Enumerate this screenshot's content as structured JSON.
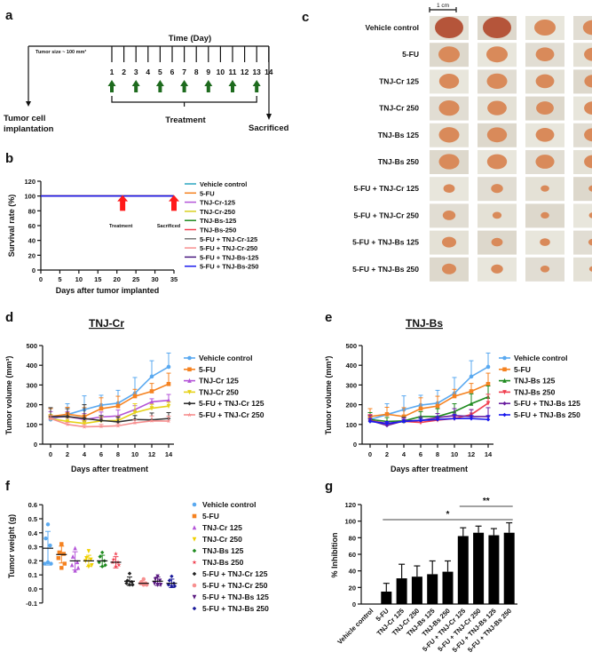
{
  "panel_labels": {
    "a": "a",
    "b": "b",
    "c": "c",
    "d": "d",
    "e": "e",
    "f": "f",
    "g": "g"
  },
  "panel_a": {
    "title": "Time (Day)",
    "tumor_size": "Tumor size ~ 100 mm³",
    "days": [
      "1",
      "2",
      "3",
      "4",
      "5",
      "6",
      "7",
      "8",
      "9",
      "10",
      "11",
      "12",
      "13",
      "14"
    ],
    "treatment_days": [
      1,
      3,
      5,
      7,
      9,
      11,
      13
    ],
    "treatment_label": "Treatment",
    "implant_label_1": "Tumor cell",
    "implant_label_2": "implantation",
    "sacrificed_label": "Sacrificed",
    "arrow_color": "#1e6b1e"
  },
  "panel_c": {
    "scale_label": "1 cm",
    "rows": [
      "Vehicle control",
      "5-FU",
      "TNJ-Cr 125",
      "TNJ-Cr 250",
      "TNJ-Bs 125",
      "TNJ-Bs 250",
      "5-FU + TNJ-Cr 125",
      "5-FU + TNJ-Cr 250",
      "5-FU + TNJ-Bs 125",
      "5-FU + TNJ-Bs 250"
    ]
  },
  "chart_data": [
    {
      "id": "b",
      "type": "line",
      "xlabel": "Days after tumor implanted",
      "ylabel": "Survival rate (%)",
      "xlim": [
        0,
        35
      ],
      "ylim": [
        0,
        120
      ],
      "xticks": [
        "0",
        "5",
        "10",
        "15",
        "20",
        "25",
        "30",
        "35"
      ],
      "yticks": [
        "0",
        "20",
        "40",
        "60",
        "80",
        "100",
        "120"
      ],
      "annotations": [
        {
          "text": "Treatment",
          "x": 21.5
        },
        {
          "text": "Sacrificed",
          "x": 35
        }
      ],
      "arrow_color": "#ff1a1a",
      "legend": "right",
      "series": [
        {
          "name": "Vehicle control",
          "color": "#2aa6c0",
          "x": [
            0,
            35
          ],
          "y": [
            100,
            100
          ]
        },
        {
          "name": "5-FU",
          "color": "#f58220",
          "x": [
            0,
            35
          ],
          "y": [
            100,
            100
          ]
        },
        {
          "name": "TNJ-Cr-125",
          "color": "#b455d8",
          "x": [
            0,
            35
          ],
          "y": [
            100,
            100
          ]
        },
        {
          "name": "TNJ-Cr-250",
          "color": "#d8d020",
          "x": [
            0,
            35
          ],
          "y": [
            100,
            100
          ]
        },
        {
          "name": "TNJ-Bs-125",
          "color": "#1f8a1f",
          "x": [
            0,
            35
          ],
          "y": [
            100,
            100
          ]
        },
        {
          "name": "TNJ-Bs-250",
          "color": "#f04050",
          "x": [
            0,
            35
          ],
          "y": [
            100,
            100
          ]
        },
        {
          "name": "5-FU + TNJ-Cr-125",
          "color": "#777777",
          "x": [
            0,
            35
          ],
          "y": [
            100,
            100
          ]
        },
        {
          "name": "5-FU + TNJ-Cr-250",
          "color": "#f79090",
          "x": [
            0,
            35
          ],
          "y": [
            100,
            100
          ]
        },
        {
          "name": "5-FU + TNJ-Bs-125",
          "color": "#4a1a80",
          "x": [
            0,
            35
          ],
          "y": [
            100,
            100
          ]
        },
        {
          "name": "5-FU + TNJ-Bs-250",
          "color": "#1a1aee",
          "x": [
            0,
            35
          ],
          "y": [
            100,
            100
          ]
        }
      ]
    },
    {
      "id": "d",
      "type": "line",
      "title": "TNJ-Cr",
      "xlabel": "Days after treatment",
      "ylabel": "Tumor volume (mm³)",
      "xlim": [
        0,
        14
      ],
      "ylim": [
        0,
        500
      ],
      "x": [
        0,
        2,
        4,
        6,
        8,
        10,
        12,
        14
      ],
      "xticks": [
        "0",
        "2",
        "4",
        "6",
        "8",
        "10",
        "12",
        "14"
      ],
      "yticks": [
        "0",
        "100",
        "200",
        "300",
        "400",
        "500"
      ],
      "legend": "right",
      "series": [
        {
          "name": "Vehicle control",
          "color": "#5aa9f0",
          "marker": "circle",
          "values": [
            125,
            150,
            175,
            198,
            208,
            258,
            343,
            392
          ],
          "sd": [
            20,
            55,
            70,
            50,
            65,
            80,
            80,
            70
          ]
        },
        {
          "name": "5-FU",
          "color": "#f58220",
          "marker": "square",
          "values": [
            140,
            152,
            140,
            180,
            193,
            243,
            268,
            305
          ],
          "sd": [
            40,
            35,
            45,
            55,
            50,
            35,
            40,
            55
          ]
        },
        {
          "name": "TNJ-Cr 125",
          "color": "#b455d8",
          "marker": "triangle",
          "values": [
            135,
            140,
            125,
            138,
            143,
            175,
            215,
            222
          ],
          "sd": [
            30,
            25,
            30,
            25,
            30,
            20,
            15,
            30
          ]
        },
        {
          "name": "TNJ-Cr 250",
          "color": "#e6d21a",
          "marker": "tri-down",
          "values": [
            130,
            115,
            105,
            118,
            120,
            160,
            182,
            193
          ],
          "sd": [
            20,
            20,
            15,
            20,
            20,
            45,
            20,
            20
          ]
        },
        {
          "name": "5-FU + TNJ-Cr 125",
          "color": "#333333",
          "marker": "diamond",
          "values": [
            140,
            140,
            130,
            120,
            113,
            125,
            123,
            130
          ],
          "sd": [
            45,
            40,
            70,
            25,
            25,
            20,
            35,
            30
          ]
        },
        {
          "name": "5-FU + TNJ-Cr 250",
          "color": "#f79090",
          "marker": "star",
          "values": [
            130,
            100,
            88,
            90,
            93,
            108,
            118,
            117
          ],
          "sd": [
            15,
            10,
            10,
            10,
            10,
            15,
            25,
            25
          ]
        }
      ]
    },
    {
      "id": "e",
      "type": "line",
      "title": "TNJ-Bs",
      "xlabel": "Days after treatment",
      "ylabel": "Tumor volume (mm³)",
      "xlim": [
        0,
        14
      ],
      "ylim": [
        0,
        500
      ],
      "x": [
        0,
        2,
        4,
        6,
        8,
        10,
        12,
        14
      ],
      "xticks": [
        "0",
        "2",
        "4",
        "6",
        "8",
        "10",
        "12",
        "14"
      ],
      "yticks": [
        "0",
        "100",
        "200",
        "300",
        "400",
        "500"
      ],
      "legend": "right",
      "series": [
        {
          "name": "Vehicle control",
          "color": "#5aa9f0",
          "marker": "circle",
          "values": [
            125,
            150,
            175,
            198,
            208,
            258,
            343,
            392
          ],
          "sd": [
            20,
            55,
            70,
            50,
            65,
            80,
            80,
            70
          ]
        },
        {
          "name": "5-FU",
          "color": "#f58220",
          "marker": "square",
          "values": [
            140,
            152,
            140,
            180,
            193,
            243,
            268,
            305
          ],
          "sd": [
            40,
            35,
            45,
            55,
            50,
            35,
            40,
            55
          ]
        },
        {
          "name": "TNJ-Bs 125",
          "color": "#1f8a1f",
          "marker": "triangle",
          "values": [
            125,
            115,
            118,
            140,
            140,
            165,
            205,
            240
          ],
          "sd": [
            35,
            20,
            20,
            25,
            40,
            40,
            50,
            55
          ]
        },
        {
          "name": "TNJ-Bs 250",
          "color": "#f04050",
          "marker": "tri-down",
          "values": [
            120,
            105,
            115,
            110,
            122,
            130,
            150,
            208
          ],
          "sd": [
            30,
            10,
            20,
            10,
            15,
            20,
            25,
            45
          ]
        },
        {
          "name": "5-FU + TNJ-Bs 125",
          "color": "#6a1ea0",
          "marker": "diamond",
          "values": [
            120,
            95,
            118,
            120,
            135,
            145,
            140,
            140
          ],
          "sd": [
            25,
            15,
            15,
            20,
            20,
            35,
            35,
            45
          ]
        },
        {
          "name": "5-FU + TNJ-Bs 250",
          "color": "#1a1aee",
          "marker": "diamond",
          "values": [
            115,
            105,
            115,
            120,
            125,
            130,
            130,
            125
          ],
          "sd": [
            15,
            10,
            10,
            10,
            15,
            20,
            15,
            20
          ]
        }
      ]
    },
    {
      "id": "f",
      "type": "scatter",
      "ylabel": "Tumor weight (g)",
      "ylim": [
        -0.1,
        0.6
      ],
      "yticks": [
        "-0.1",
        "0.0",
        "0.1",
        "0.2",
        "0.3",
        "0.4",
        "0.5",
        "0.6"
      ],
      "legend": "right",
      "groups": [
        {
          "name": "Vehicle control",
          "color": "#5aa9f0",
          "marker": "circle",
          "mean": 0.29,
          "sd": 0.12,
          "points": [
            0.46,
            0.36,
            0.31,
            0.18,
            0.18,
            0.19
          ]
        },
        {
          "name": "5-FU",
          "color": "#f58220",
          "marker": "square",
          "mean": 0.245,
          "sd": 0.06,
          "points": [
            0.32,
            0.26,
            0.25,
            0.22,
            0.18,
            0.15
          ]
        },
        {
          "name": "TNJ-Cr 125",
          "color": "#b455d8",
          "marker": "triangle",
          "mean": 0.2,
          "sd": 0.065,
          "points": [
            0.29,
            0.23,
            0.19,
            0.17,
            0.15,
            0.13
          ]
        },
        {
          "name": "TNJ-Cr 250",
          "color": "#f0d000",
          "marker": "tri-down",
          "mean": 0.2,
          "sd": 0.04,
          "points": [
            0.27,
            0.22,
            0.21,
            0.2,
            0.17,
            0.16
          ]
        },
        {
          "name": "TNJ-Bs 125",
          "color": "#1f8a1f",
          "marker": "diamond",
          "mean": 0.2,
          "sd": 0.04,
          "points": [
            0.26,
            0.23,
            0.2,
            0.19,
            0.17,
            0.16
          ]
        },
        {
          "name": "TNJ-Bs 250",
          "color": "#f04050",
          "marker": "star",
          "mean": 0.19,
          "sd": 0.04,
          "points": [
            0.25,
            0.21,
            0.19,
            0.19,
            0.17,
            0.16
          ]
        },
        {
          "name": "5-FU + TNJ-Cr 125",
          "color": "#222222",
          "marker": "diamond",
          "mean": 0.055,
          "sd": 0.03,
          "points": [
            0.11,
            0.06,
            0.05,
            0.04,
            0.03,
            0.03
          ]
        },
        {
          "name": "5-FU + TNJ-Cr 250",
          "color": "#f79090",
          "marker": "circle",
          "mean": 0.04,
          "sd": 0.01,
          "points": [
            0.07,
            0.05,
            0.04,
            0.04,
            0.03,
            0.03
          ]
        },
        {
          "name": "5-FU + TNJ-Bs 125",
          "color": "#5a1a80",
          "marker": "tri-down",
          "mean": 0.055,
          "sd": 0.03,
          "points": [
            0.09,
            0.07,
            0.06,
            0.04,
            0.03,
            0.03
          ]
        },
        {
          "name": "5-FU + TNJ-Bs 250",
          "color": "#1a1a9a",
          "marker": "diamond",
          "mean": 0.04,
          "sd": 0.03,
          "points": [
            0.09,
            0.06,
            0.04,
            0.03,
            0.02,
            0.02
          ]
        }
      ]
    },
    {
      "id": "g",
      "type": "bar",
      "ylabel": "% Inhibition",
      "ylim": [
        0,
        120
      ],
      "yticks": [
        "0",
        "20",
        "40",
        "60",
        "80",
        "100",
        "120"
      ],
      "categories": [
        "Vehicle control",
        "5-FU",
        "TNJ-Cr 125",
        "TNJ-Cr 250",
        "TNJ-Bs 125",
        "TNJ-Bs 250",
        "5-FU + TNJ-Cr 125",
        "5-FU + TNJ-Cr 250",
        "5-FU + TNJ-Bs 125",
        "5-FU + TNJ-Bs 250"
      ],
      "values": [
        0,
        15,
        31,
        33,
        36,
        39,
        82,
        86,
        83,
        86
      ],
      "sd": [
        0,
        10,
        17,
        13,
        16,
        13,
        10,
        8,
        8,
        12
      ],
      "significance": [
        {
          "label": "*",
          "from": 1,
          "to": 9
        },
        {
          "label": "**",
          "from": 6,
          "to": 9
        }
      ],
      "color": "#000000"
    }
  ]
}
